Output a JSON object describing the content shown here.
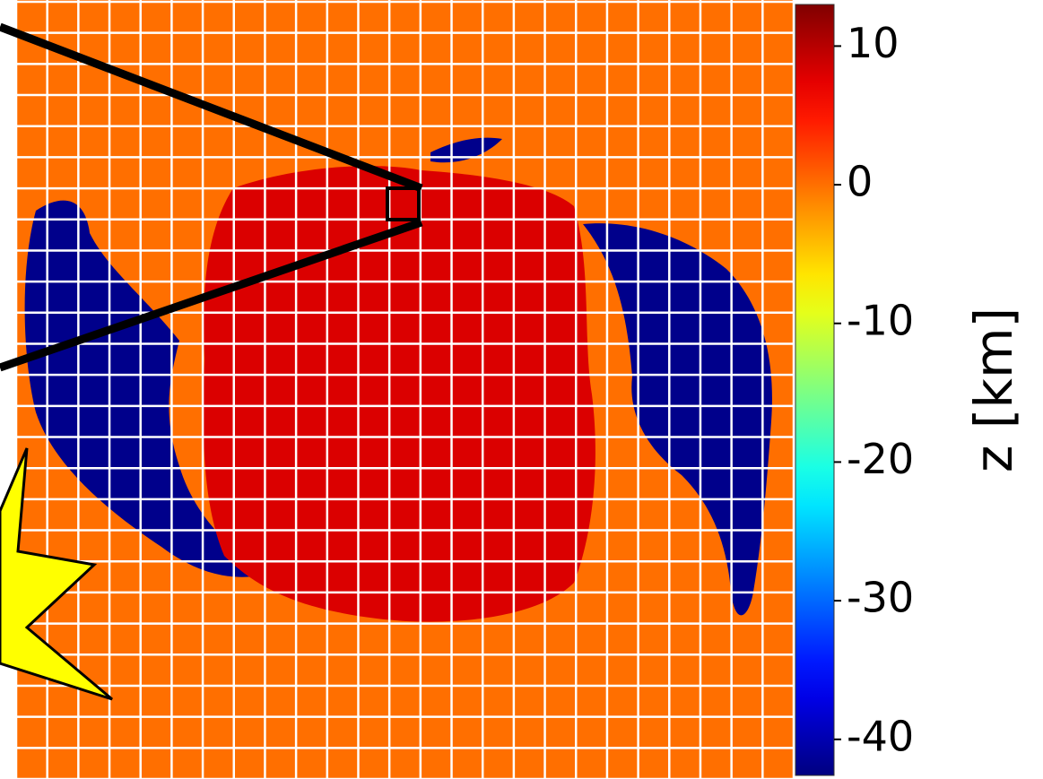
{
  "chart_data": {
    "type": "heatmap",
    "values": [
      0,
      -42,
      -42,
      8
    ],
    "colorbar": {
      "label": "z [km]",
      "clim": [
        -42.6,
        13
      ],
      "ticks": [
        10,
        0,
        -10,
        -20,
        -30,
        -40
      ]
    }
  }
}
